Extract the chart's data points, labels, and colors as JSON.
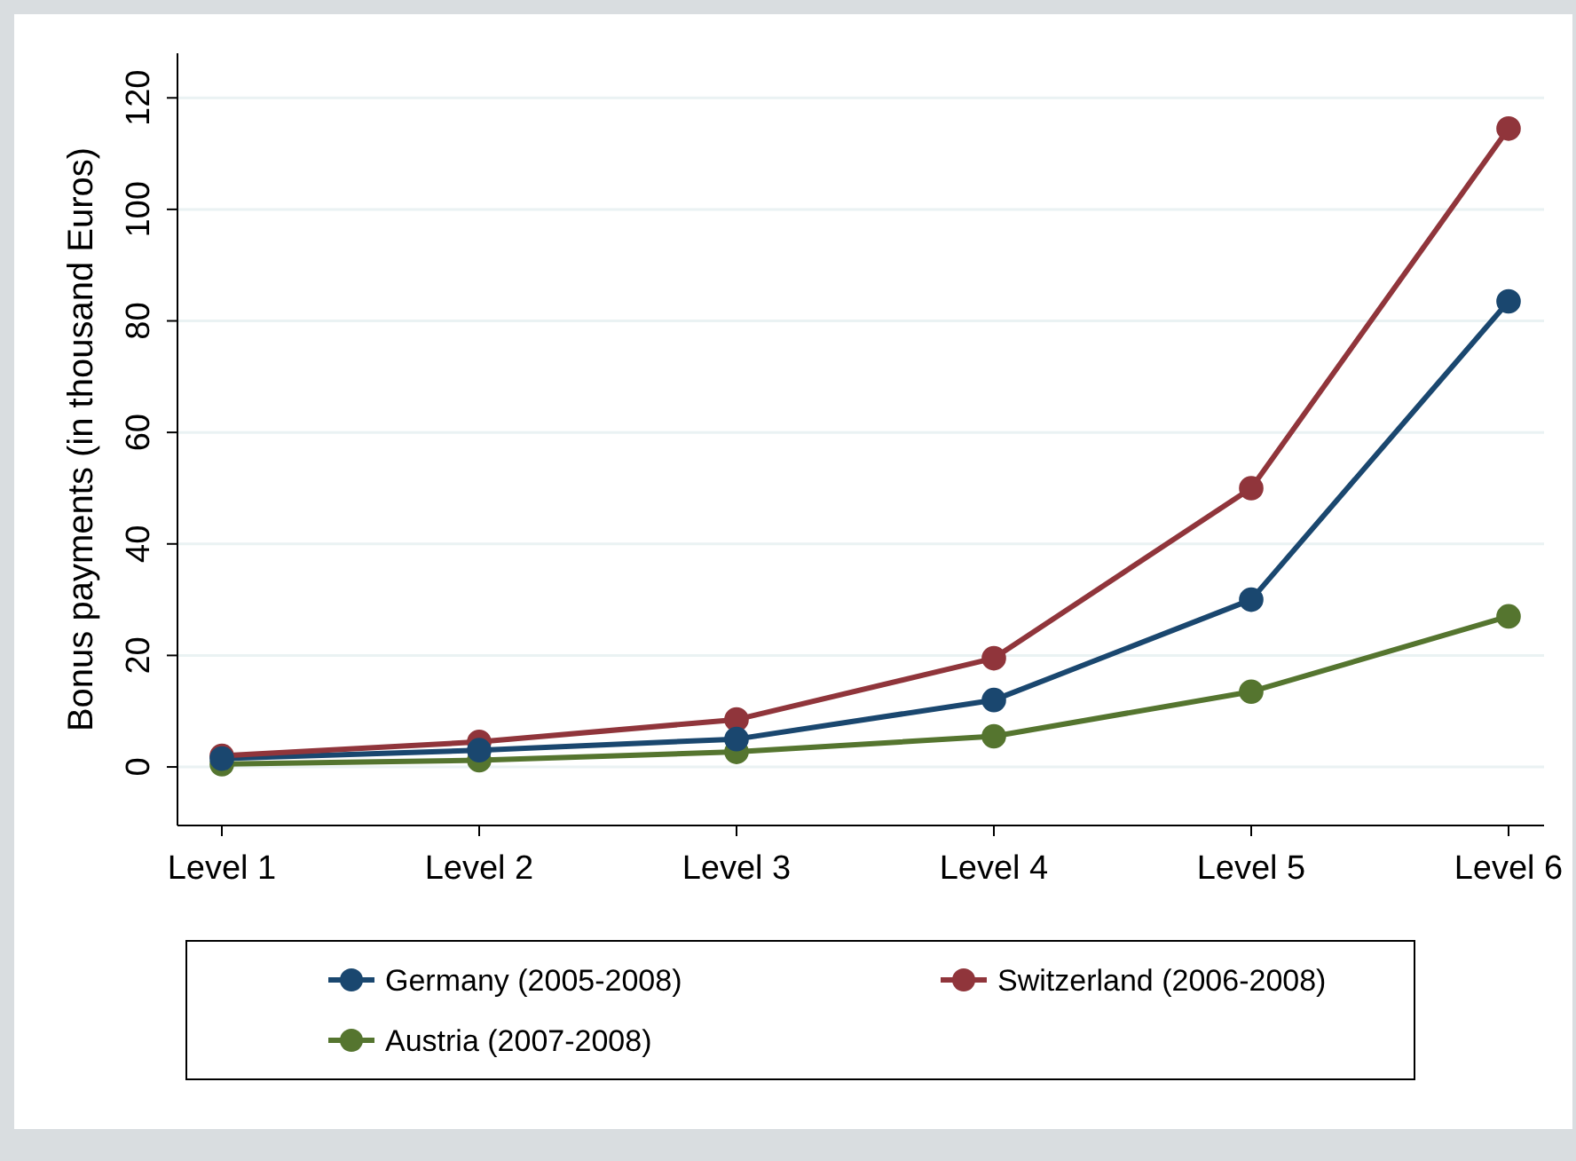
{
  "chart_data": {
    "type": "line",
    "ylabel": "Bonus payments (in thousand Euros)",
    "categories": [
      "Level 1",
      "Level 2",
      "Level 3",
      "Level 4",
      "Level 5",
      "Level 6"
    ],
    "series": [
      {
        "name": "Germany (2005-2008)",
        "color": "#1a476f",
        "values": [
          1.5,
          3,
          5,
          12,
          30,
          83.5
        ]
      },
      {
        "name": "Switzerland (2006-2008)",
        "color": "#90353b",
        "values": [
          2,
          4.5,
          8.5,
          19.5,
          50,
          114.5
        ]
      },
      {
        "name": "Austria (2007-2008)",
        "color": "#55752f",
        "values": [
          0.5,
          1.2,
          2.7,
          5.5,
          13.5,
          27
        ]
      }
    ],
    "ylim": [
      -10.5,
      128
    ],
    "yticks": [
      0,
      20,
      40,
      60,
      80,
      100,
      120
    ],
    "grid": "y",
    "legend": "bottom",
    "marker": "circle",
    "line_style": "solid"
  }
}
